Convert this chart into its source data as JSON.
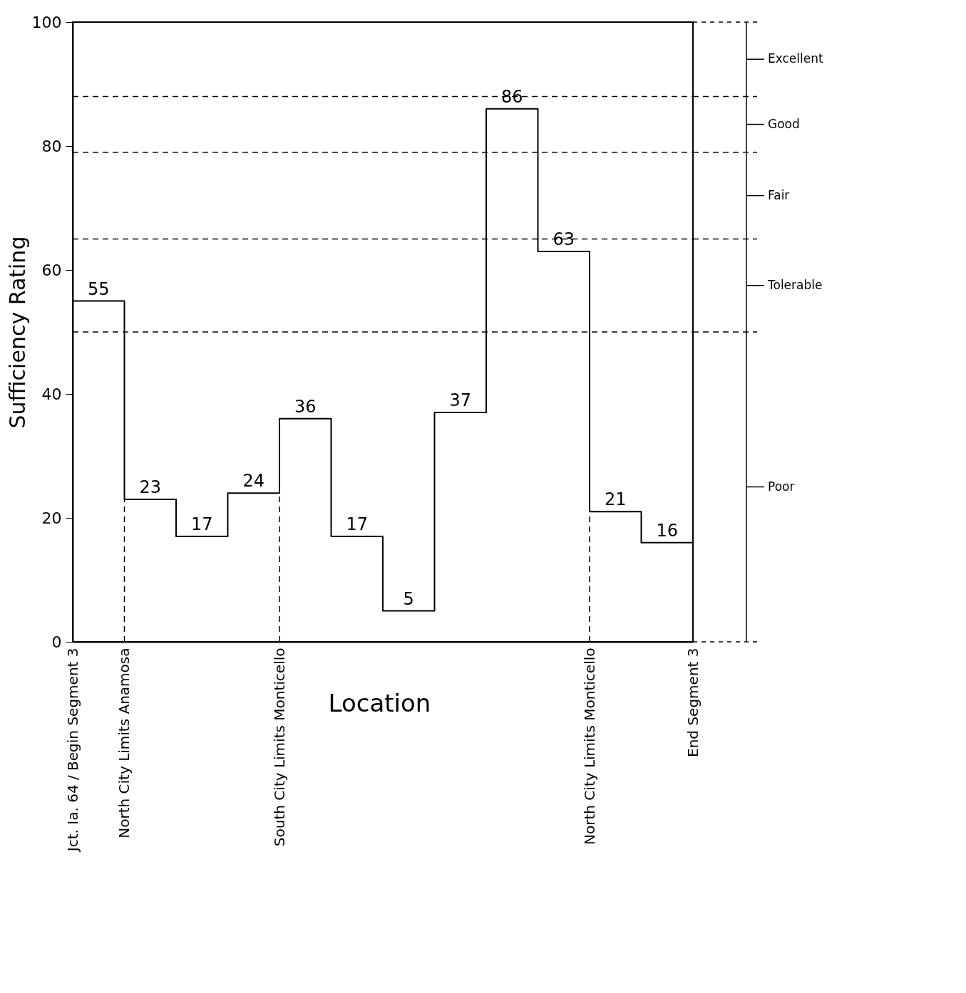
{
  "chart_data": {
    "type": "step",
    "xlabel": "Location",
    "ylabel": "Sufficiency Rating",
    "categories": [
      "Jct. Ia. 64 / Begin Segment 3",
      "North City Limits Anamosa",
      null,
      null,
      "South City Limits Monticello",
      null,
      null,
      null,
      null,
      null,
      "North City Limits Monticello",
      null,
      "End Segment 3"
    ],
    "values": [
      55,
      23,
      17,
      24,
      36,
      17,
      5,
      37,
      86,
      63,
      21,
      16,
      null
    ],
    "color": "#000000",
    "data_labels": true,
    "ylim": [
      0,
      100
    ],
    "yticks": [
      0,
      20,
      40,
      60,
      80,
      100
    ],
    "grid": false,
    "line_style": "solid",
    "ref_lines": [
      {
        "axis": "y",
        "value": 88,
        "line_style": "dashed"
      },
      {
        "axis": "y",
        "value": 79,
        "line_style": "dashed"
      },
      {
        "axis": "y",
        "value": 65,
        "line_style": "dashed"
      },
      {
        "axis": "y",
        "value": 50,
        "line_style": "dashed"
      },
      {
        "axis": "x",
        "value": "North City Limits Anamosa",
        "line_style": "dashed"
      },
      {
        "axis": "x",
        "value": "South City Limits Monticello",
        "line_style": "dashed"
      },
      {
        "axis": "x",
        "value": "North City Limits Monticello",
        "line_style": "dashed"
      }
    ],
    "annotations": [
      "Excellent",
      "Good",
      "Fair",
      "Tolerable",
      "Poor"
    ]
  }
}
